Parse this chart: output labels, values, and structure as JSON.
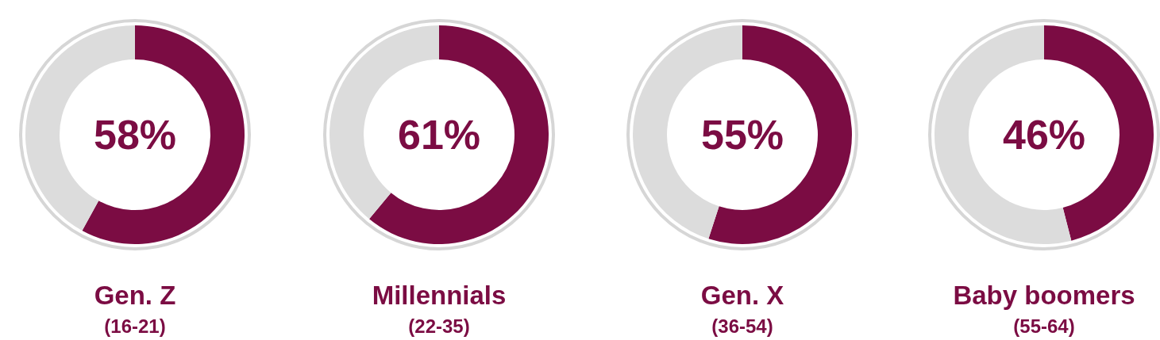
{
  "chart_data": [
    {
      "type": "donut",
      "title": "Gen. Z",
      "subtitle": "(16-21)",
      "categories": [
        null,
        null
      ],
      "values": [
        58,
        42
      ],
      "colors": [
        "#7b0c43",
        "#dcdcdc"
      ],
      "annotations": [
        "58%"
      ]
    },
    {
      "type": "donut",
      "title": "Millennials",
      "subtitle": "(22-35)",
      "categories": [
        null,
        null
      ],
      "values": [
        61,
        39
      ],
      "colors": [
        "#7b0c43",
        "#dcdcdc"
      ],
      "annotations": [
        "61%"
      ]
    },
    {
      "type": "donut",
      "title": "Gen. X",
      "subtitle": "(36-54)",
      "categories": [
        null,
        null
      ],
      "values": [
        55,
        45
      ],
      "colors": [
        "#7b0c43",
        "#dcdcdc"
      ],
      "annotations": [
        "55%"
      ]
    },
    {
      "type": "donut",
      "title": "Baby boomers",
      "subtitle": "(55-64)",
      "categories": [
        null,
        null
      ],
      "values": [
        46,
        54
      ],
      "colors": [
        "#7b0c43",
        "#dcdcdc"
      ],
      "annotations": [
        "46%"
      ]
    }
  ]
}
